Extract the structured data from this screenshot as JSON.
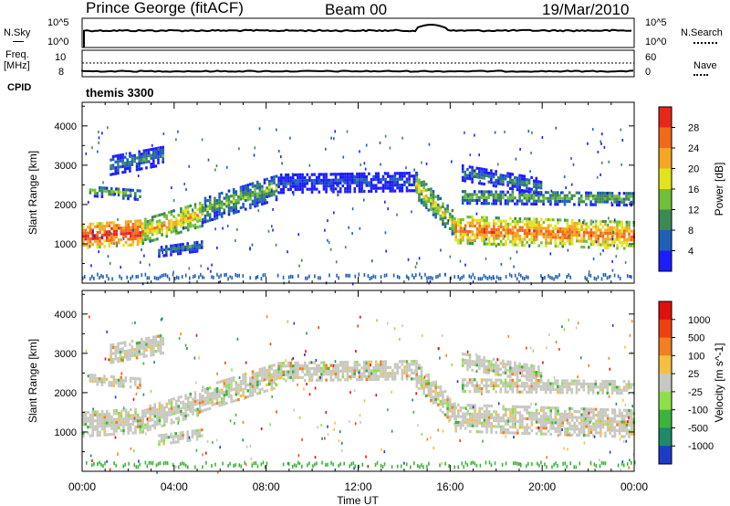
{
  "header": {
    "station": "Prince George (fitACF)",
    "beam": "Beam 00",
    "date": "19/Mar/2010",
    "cpid_value": "themis 3300"
  },
  "side_labels": {
    "n_sky": "N.Sky",
    "freq": "Freq.",
    "freq_unit": "[MHz]",
    "cpid": "CPID",
    "n_search": "N.Search",
    "nave": "Nave",
    "sky_top": "10^5",
    "sky_bottom": "10^0",
    "search_top": "10^5",
    "search_bottom": "10^0",
    "freq_top": "10",
    "freq_bottom": "8",
    "nave_top": "60",
    "nave_bottom": "0"
  },
  "chart_data": [
    {
      "type": "heatmap",
      "panel": "power",
      "ylabel": "Slant Range [km]",
      "xlabel": "Time UT",
      "xlim": [
        "00:00",
        "24:00"
      ],
      "x_ticks": [
        "00:00",
        "04:00",
        "08:00",
        "12:00",
        "16:00",
        "20:00",
        "00:00"
      ],
      "ylim": [
        0,
        4600
      ],
      "y_ticks": [
        1000,
        2000,
        3000,
        4000
      ],
      "colorbar": {
        "label": "Power [dB]",
        "ticks": [
          "4",
          "8",
          "12",
          "16",
          "20",
          "24",
          "28"
        ],
        "colors": [
          "#1c1cff",
          "#1e5fb8",
          "#3c8a52",
          "#6fbf3a",
          "#e3e31d",
          "#f5a623",
          "#f06a1a",
          "#e8271a"
        ]
      }
    },
    {
      "type": "heatmap",
      "panel": "velocity",
      "ylabel": "Slant Range [km]",
      "xlabel": "Time UT",
      "xlim": [
        "00:00",
        "24:00"
      ],
      "x_ticks": [
        "00:00",
        "04:00",
        "08:00",
        "12:00",
        "16:00",
        "20:00",
        "00:00"
      ],
      "ylim": [
        0,
        4600
      ],
      "y_ticks": [
        1000,
        2000,
        3000,
        4000
      ],
      "colorbar": {
        "label": "Velocity [m s^-1]",
        "ticks": [
          "1000",
          "500",
          "100",
          "25",
          "-25",
          "-100",
          "-500",
          "-1000"
        ],
        "colors": [
          "#1c3cc8",
          "#1e8a6a",
          "#3cb43c",
          "#8ee04a",
          "#c8c8c0",
          "#f5c040",
          "#f08020",
          "#f04010",
          "#e01010"
        ]
      }
    }
  ],
  "x_axis": {
    "label": "Time UT",
    "ticks": [
      "00:00",
      "04:00",
      "08:00",
      "12:00",
      "16:00",
      "20:00",
      "00:00"
    ]
  }
}
